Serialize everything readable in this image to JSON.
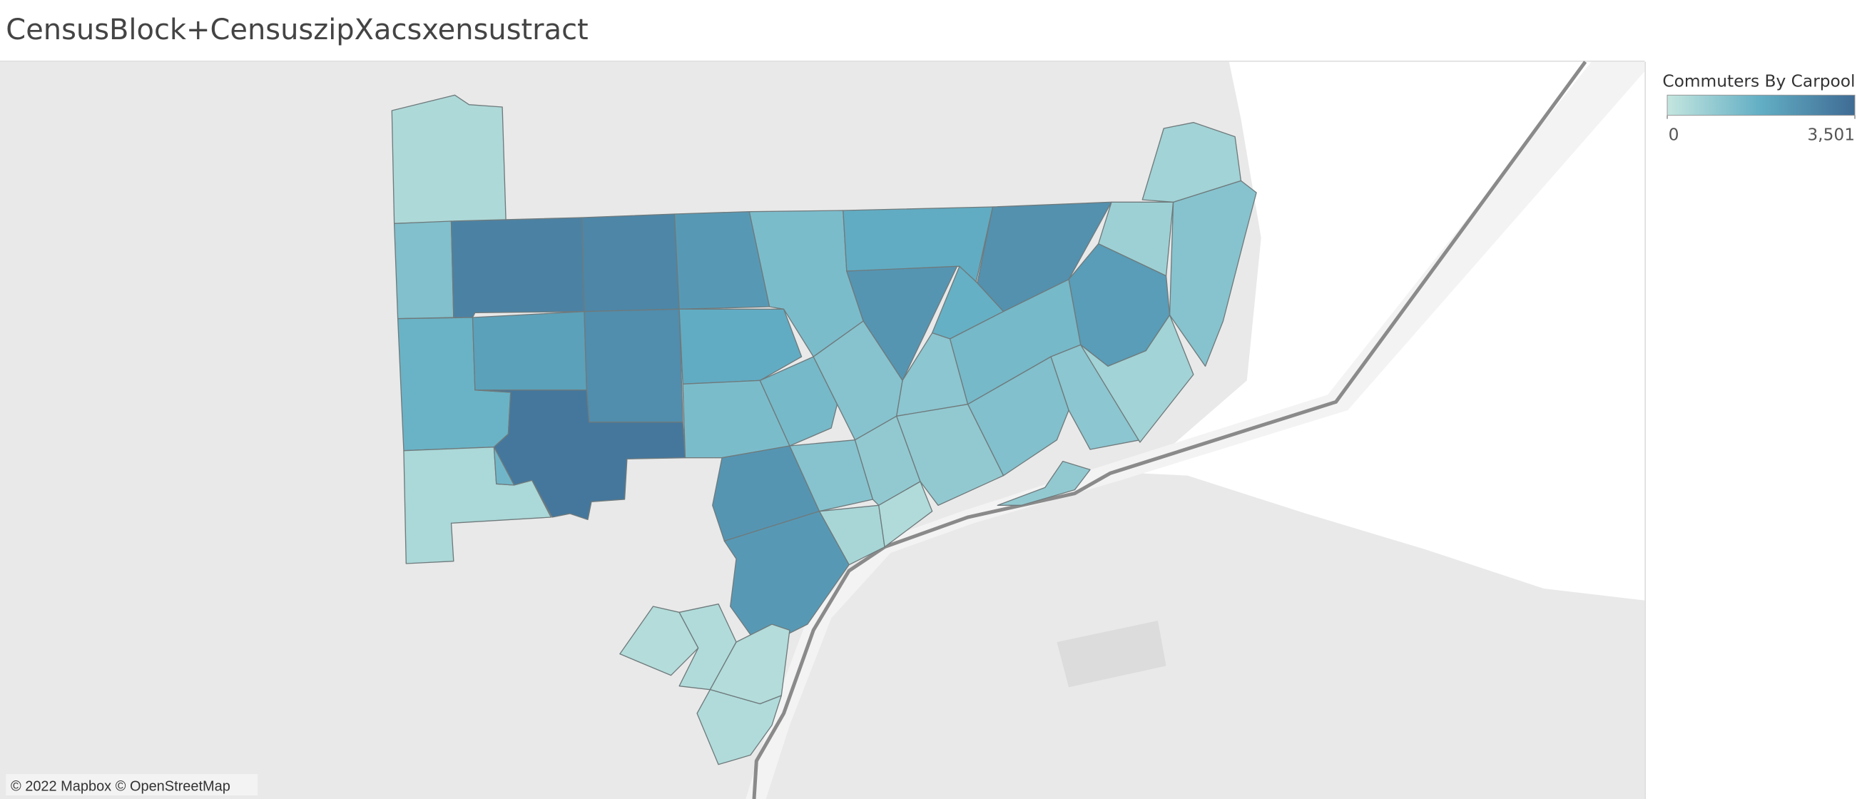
{
  "chart_data": {
    "type": "choropleth",
    "title": "CensusBlock+CensuszipXacsxensustract",
    "legend_title": "Commuters By Carpool",
    "color_range": [
      "#c4e6df",
      "#62aec4",
      "#3f6b94"
    ],
    "clim": [
      0,
      3501
    ],
    "cticks": [
      0,
      {
        "value": 3501,
        "label": "3,501"
      }
    ],
    "values": [
      400,
      1200,
      2900,
      2800,
      2300,
      1300,
      1800,
      2400,
      2500,
      1700,
      700,
      1100,
      600,
      2200,
      1600,
      2100,
      2600,
      1800,
      3200,
      450,
      1500,
      1300,
      1400,
      1100,
      1000,
      1400,
      1200,
      1000,
      600,
      2400,
      1100,
      900,
      900,
      500,
      2300,
      350,
      900,
      300,
      350,
      300,
      350
    ]
  },
  "attribution": "© 2022 Mapbox © OpenStreetMap"
}
